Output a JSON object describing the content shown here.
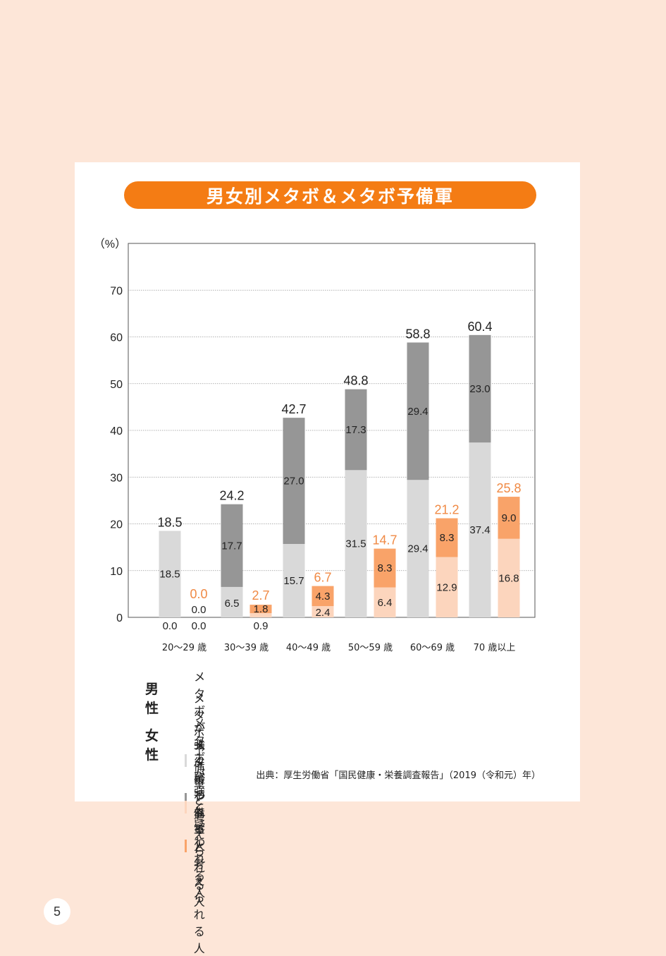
{
  "title": "男女別メタボ＆メタボ予備軍",
  "colors": {
    "male_strong": "#d9d9d9",
    "male_reserve": "#969696",
    "female_strong": "#fcd5bd",
    "female_reserve": "#f9a369",
    "female_total_text": "#f08a45",
    "male_total_text": "#222222",
    "accent": "#f47c14"
  },
  "chart_data": {
    "type": "bar",
    "stacked": true,
    "ylabel": "（%）",
    "ylim": [
      0,
      80
    ],
    "yticks": [
      "0",
      "10",
      "20",
      "30",
      "40",
      "50",
      "60",
      "70"
    ],
    "grid": true,
    "categories": [
      "20～29 歳",
      "30～39 歳",
      "40～49 歳",
      "50～59 歳",
      "60～69 歳",
      "70 歳以上"
    ],
    "male": {
      "strong": [
        18.5,
        6.5,
        15.7,
        31.5,
        29.4,
        37.4
      ],
      "reserve": [
        0.0,
        17.7,
        27.0,
        17.3,
        29.4,
        23.0
      ],
      "total": [
        18.5,
        24.2,
        42.7,
        48.8,
        58.8,
        60.4
      ]
    },
    "female": {
      "strong": [
        0.0,
        0.9,
        2.4,
        6.4,
        12.9,
        16.8
      ],
      "reserve": [
        0.0,
        1.8,
        4.3,
        8.3,
        8.3,
        9.0
      ],
      "total": [
        0.0,
        2.7,
        6.7,
        14.7,
        21.2,
        25.8
      ]
    },
    "labels": {
      "male_strong": [
        "18.5",
        "6.5",
        "15.7",
        "31.5",
        "29.4",
        "37.4"
      ],
      "male_reserve": [
        "0.0",
        "17.7",
        "27.0",
        "17.3",
        "29.4",
        "23.0"
      ],
      "male_total": [
        "18.5",
        "24.2",
        "42.7",
        "48.8",
        "58.8",
        "60.4"
      ],
      "female_strong": [
        "0.0",
        "0.9",
        "2.4",
        "6.4",
        "12.9",
        "16.8"
      ],
      "female_reserve": [
        "0.0",
        "1.8",
        "4.3",
        "8.3",
        "8.3",
        "9.0"
      ],
      "female_total": [
        "0.0",
        "2.7",
        "6.7",
        "14.7",
        "21.2",
        "25.8"
      ]
    }
  },
  "legend": {
    "male_group": "男性",
    "female_group": "女性",
    "strong": "メタボが強く疑われる人",
    "reserve": "メタボ予備軍と考えられる人"
  },
  "source": "出典：厚生労働省「国民健康・栄養調査報告」（2019（令和元）年）",
  "page_number": "5"
}
